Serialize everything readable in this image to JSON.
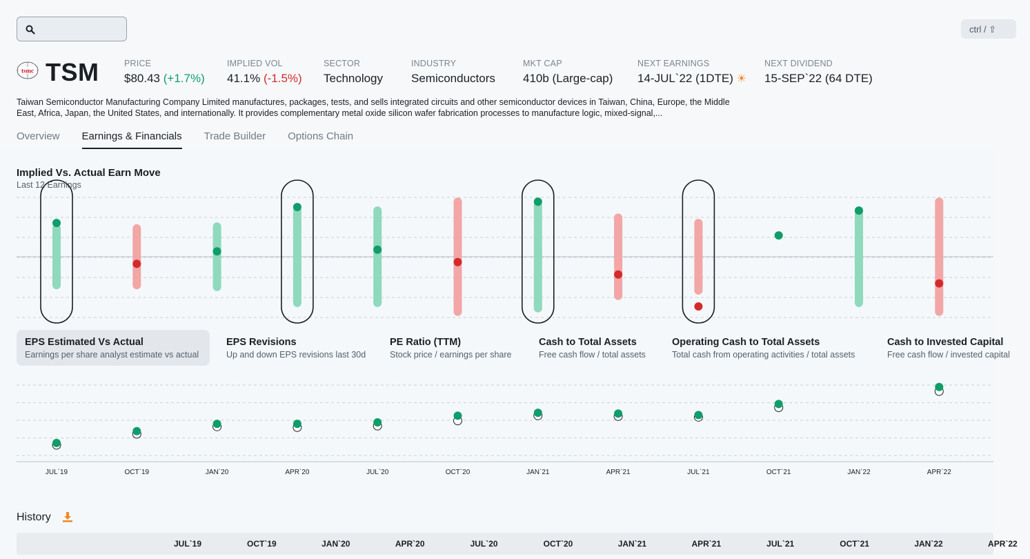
{
  "search": {
    "placeholder": ""
  },
  "shortcut": "ctrl / ⇧",
  "ticker": {
    "logo_text": "tsmc",
    "symbol": "TSM"
  },
  "stats": [
    {
      "label": "PRICE",
      "value": "$80.43",
      "change": "(+1.7%)",
      "tone": "pos"
    },
    {
      "label": "IMPLIED VOL",
      "value": "41.1%",
      "change": "(-1.5%)",
      "tone": "neg"
    },
    {
      "label": "SECTOR",
      "value": "Technology"
    },
    {
      "label": "INDUSTRY",
      "value": "Semiconductors"
    },
    {
      "label": "MKT CAP",
      "value": "410b (Large-cap)"
    },
    {
      "label": "NEXT EARNINGS",
      "value": "14-JUL`22 (1DTE)",
      "icon": "sun-icon"
    },
    {
      "label": "NEXT DIVIDEND",
      "value": "15-SEP`22 (64 DTE)"
    }
  ],
  "description": "Taiwan Semiconductor Manufacturing Company Limited manufactures, packages, tests, and sells integrated circuits and other semiconductor devices in Taiwan, China, Europe, the Middle East, Africa, Japan, the United States, and internationally. It provides complementary metal oxide silicon wafer fabrication processes to manufacture logic, mixed-signal,...",
  "tabs": [
    "Overview",
    "Earnings & Financials",
    "Trade Builder",
    "Options Chain"
  ],
  "active_tab": "Earnings & Financials",
  "earn_move": {
    "title": "Implied Vs. Actual Earn Move",
    "subtitle": "Last 12 Earnings"
  },
  "metrics": [
    {
      "title": "EPS Estimated Vs Actual",
      "subtitle": "Earnings per share analyst estimate vs actual"
    },
    {
      "title": "EPS Revisions",
      "subtitle": "Up and down EPS revisions last 30d"
    },
    {
      "title": "PE Ratio (TTM)",
      "subtitle": "Stock price / earnings per share"
    },
    {
      "title": "Cash to Total Assets",
      "subtitle": "Free cash flow / total assets"
    },
    {
      "title": "Operating Cash to Total Assets",
      "subtitle": "Total cash from operating activities / total assets"
    },
    {
      "title": "Cash to Invested Capital",
      "subtitle": "Free cash flow / invested capital"
    }
  ],
  "history": {
    "title": "History",
    "columns": [
      "JUL`19",
      "OCT`19",
      "JAN`20",
      "APR`20",
      "JUL`20",
      "OCT`20",
      "JAN`21",
      "APR`21",
      "JUL`21",
      "OCT`21",
      "JAN`22",
      "APR`22"
    ]
  },
  "colors": {
    "positive": "#0f9d6a",
    "negative": "#d42a2a",
    "positive_bar": "#8fd9bc",
    "negative_bar": "#f2a6a6"
  },
  "chart_data": [
    {
      "type": "scatter",
      "title": "Implied Vs. Actual Earn Move",
      "subtitle": "Last 12 Earnings",
      "categories": [
        "JUL`19",
        "OCT`19",
        "JAN`20",
        "APR`20",
        "JUL`20",
        "OCT`20",
        "JAN`21",
        "APR`21",
        "JUL`21",
        "OCT`21",
        "JAN`22",
        "APR`22"
      ],
      "implied_move_range": [
        [
          -0.16,
          0.16
        ],
        [
          -0.16,
          0.16
        ],
        [
          -0.17,
          0.17
        ],
        [
          -0.26,
          0.26
        ],
        [
          -0.26,
          0.26
        ],
        [
          -0.31,
          0.31
        ],
        [
          -0.29,
          0.29
        ],
        [
          -0.22,
          0.22
        ],
        [
          -0.19,
          0.19
        ],
        null,
        [
          -0.26,
          0.26
        ],
        [
          -0.31,
          0.31
        ]
      ],
      "actual_move": [
        0.19,
        -0.04,
        0.03,
        0.28,
        0.04,
        -0.03,
        0.31,
        -0.1,
        -0.28,
        0.12,
        0.26,
        -0.15
      ],
      "direction": [
        "up",
        "down",
        "up",
        "up",
        "up",
        "down",
        "up",
        "down",
        "down",
        "up",
        "up",
        "down"
      ],
      "highlighted": [
        true,
        false,
        false,
        true,
        false,
        false,
        true,
        false,
        true,
        false,
        false,
        false
      ],
      "ylim": [
        -0.35,
        0.35
      ],
      "grid": true
    },
    {
      "type": "scatter",
      "title": "EPS Estimated Vs Actual",
      "categories": [
        "JUL`19",
        "OCT`19",
        "JAN`20",
        "APR`20",
        "JUL`20",
        "OCT`20",
        "JAN`21",
        "APR`21",
        "JUL`21",
        "OCT`21",
        "JAN`22",
        "APR`22"
      ],
      "series": [
        {
          "name": "Estimate",
          "values": [
            0.57,
            0.72,
            0.82,
            0.81,
            0.83,
            0.9,
            0.97,
            0.96,
            0.95,
            1.08,
            null,
            1.3
          ]
        },
        {
          "name": "Actual",
          "values": [
            0.57,
            0.73,
            0.83,
            0.83,
            0.85,
            0.94,
            0.98,
            0.97,
            0.95,
            1.1,
            null,
            1.33
          ]
        }
      ],
      "ylim": [
        0.4,
        1.45
      ],
      "grid": true
    }
  ]
}
